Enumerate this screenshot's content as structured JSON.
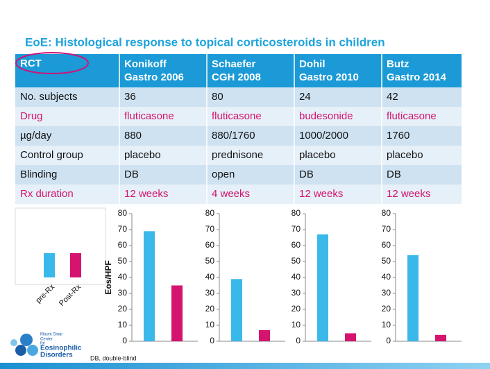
{
  "title": "EoE: Histological response to topical corticosteroids in children",
  "table": {
    "header": [
      [
        "RCT"
      ],
      [
        "Konikoff",
        "Gastro 2006"
      ],
      [
        "Schaefer",
        "CGH 2008"
      ],
      [
        "Dohil",
        "Gastro 2010"
      ],
      [
        "Butz",
        "Gastro 2014"
      ]
    ],
    "rows": [
      {
        "cells": [
          "No. subjects",
          "36",
          "80",
          "24",
          "42"
        ],
        "highlight": false
      },
      {
        "cells": [
          "Drug",
          "fluticasone",
          "fluticasone",
          "budesonide",
          "fluticasone"
        ],
        "highlight": true
      },
      {
        "cells": [
          "µg/day",
          "880",
          "880/1760",
          "1000/2000",
          "1760"
        ],
        "highlight": false
      },
      {
        "cells": [
          "Control group",
          "placebo",
          "prednisone",
          "placebo",
          "placebo"
        ],
        "highlight": false
      },
      {
        "cells": [
          "Blinding",
          "DB",
          "open",
          "DB",
          "DB"
        ],
        "highlight": false
      },
      {
        "cells": [
          "Rx duration",
          "12 weeks",
          "4 weeks",
          "12 weeks",
          "12 weeks"
        ],
        "highlight": true
      }
    ]
  },
  "legend": [
    {
      "name": "pre-Rx",
      "color": "#3bb8ea"
    },
    {
      "name": "Post-Rx",
      "color": "#d4146e"
    }
  ],
  "chart_data": [
    {
      "type": "bar",
      "ylabel": "Eos/HPF",
      "values": [
        69,
        35
      ],
      "ylim": [
        0,
        80
      ],
      "yticks": [
        0,
        10,
        20,
        30,
        40,
        50,
        60,
        70,
        80
      ]
    },
    {
      "type": "bar",
      "values": [
        39,
        7
      ],
      "ylim": [
        0,
        80
      ],
      "yticks": [
        0,
        10,
        20,
        30,
        40,
        50,
        60,
        70,
        80
      ]
    },
    {
      "type": "bar",
      "values": [
        67,
        5
      ],
      "ylim": [
        0,
        80
      ],
      "yticks": [
        0,
        10,
        20,
        30,
        40,
        50,
        60,
        70,
        80
      ]
    },
    {
      "type": "bar",
      "values": [
        54,
        4
      ],
      "ylim": [
        0,
        80
      ],
      "yticks": [
        0,
        10,
        20,
        30,
        40,
        50,
        60,
        70,
        80
      ]
    }
  ],
  "footnote": "DB, double-blind",
  "logo": [
    "Mount Sinai",
    "Center",
    "for",
    "Eosinophilic",
    "Disorders"
  ]
}
